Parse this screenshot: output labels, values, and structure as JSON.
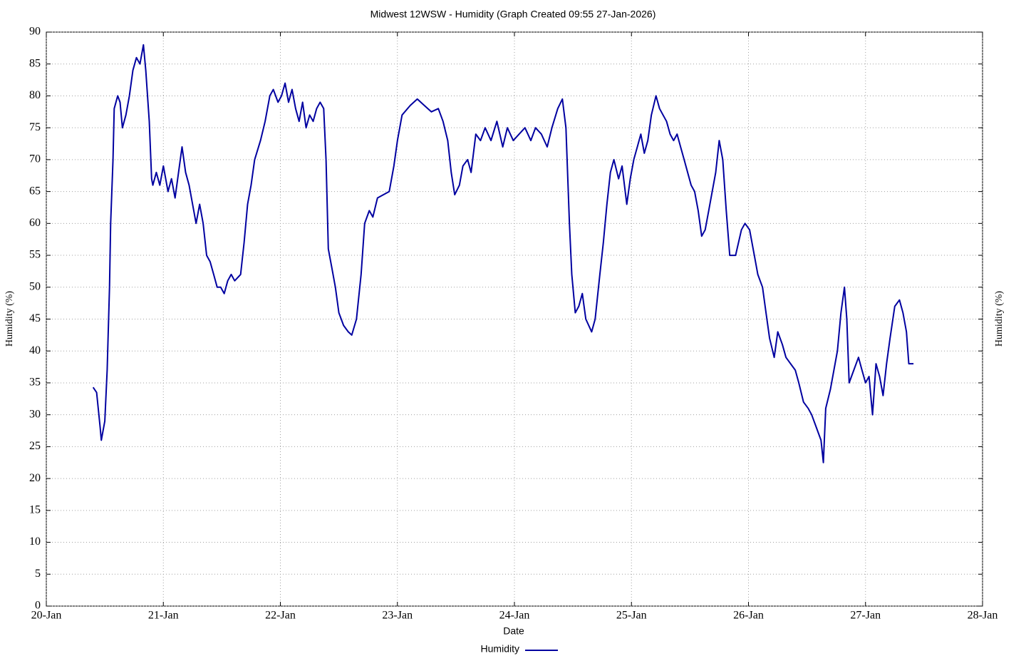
{
  "chart_data": {
    "type": "line",
    "title": "Midwest 12WSW - Humidity (Graph Created 09:55 27-Jan-2026)",
    "xlabel": "Date",
    "ylabel": "Humidity (%)",
    "y2label": "Humidity (%)",
    "xlim": [
      0,
      8
    ],
    "xticks": [
      {
        "value": 0,
        "label": "20-Jan"
      },
      {
        "value": 1,
        "label": "21-Jan"
      },
      {
        "value": 2,
        "label": "22-Jan"
      },
      {
        "value": 3,
        "label": "23-Jan"
      },
      {
        "value": 4,
        "label": "24-Jan"
      },
      {
        "value": 5,
        "label": "25-Jan"
      },
      {
        "value": 6,
        "label": "26-Jan"
      },
      {
        "value": 7,
        "label": "27-Jan"
      },
      {
        "value": 8,
        "label": "28-Jan"
      }
    ],
    "ylim": [
      0,
      90
    ],
    "yticks": [
      0,
      5,
      10,
      15,
      20,
      25,
      30,
      35,
      40,
      45,
      50,
      55,
      60,
      65,
      70,
      75,
      80,
      85,
      90
    ],
    "grid": true,
    "legend": "bottom",
    "x": [
      0.4,
      0.43,
      0.46,
      0.47,
      0.5,
      0.52,
      0.54,
      0.55,
      0.57,
      0.58,
      0.61,
      0.63,
      0.65,
      0.68,
      0.71,
      0.74,
      0.77,
      0.8,
      0.83,
      0.85,
      0.88,
      0.9,
      0.91,
      0.94,
      0.97,
      1.0,
      1.04,
      1.07,
      1.1,
      1.13,
      1.16,
      1.19,
      1.22,
      1.25,
      1.28,
      1.31,
      1.34,
      1.37,
      1.4,
      1.43,
      1.46,
      1.49,
      1.52,
      1.55,
      1.58,
      1.61,
      1.66,
      1.69,
      1.72,
      1.75,
      1.78,
      1.83,
      1.87,
      1.91,
      1.94,
      1.98,
      2.01,
      2.04,
      2.07,
      2.1,
      2.13,
      2.16,
      2.19,
      2.22,
      2.25,
      2.28,
      2.31,
      2.34,
      2.37,
      2.39,
      2.41,
      2.44,
      2.47,
      2.5,
      2.54,
      2.58,
      2.61,
      2.65,
      2.69,
      2.72,
      2.76,
      2.79,
      2.83,
      2.88,
      2.93,
      2.97,
      3.0,
      3.04,
      3.11,
      3.17,
      3.23,
      3.29,
      3.35,
      3.39,
      3.43,
      3.46,
      3.49,
      3.53,
      3.56,
      3.6,
      3.63,
      3.67,
      3.71,
      3.75,
      3.8,
      3.85,
      3.9,
      3.94,
      3.99,
      4.04,
      4.09,
      4.14,
      4.18,
      4.23,
      4.28,
      4.32,
      4.37,
      4.41,
      4.44,
      4.47,
      4.49,
      4.52,
      4.55,
      4.58,
      4.61,
      4.66,
      4.69,
      4.73,
      4.76,
      4.79,
      4.82,
      4.85,
      4.89,
      4.92,
      4.96,
      4.99,
      5.02,
      5.05,
      5.08,
      5.11,
      5.14,
      5.17,
      5.21,
      5.24,
      5.27,
      5.3,
      5.33,
      5.36,
      5.39,
      5.42,
      5.45,
      5.48,
      5.51,
      5.54,
      5.57,
      5.6,
      5.63,
      5.66,
      5.69,
      5.72,
      5.75,
      5.78,
      5.81,
      5.84,
      5.89,
      5.94,
      5.97,
      6.01,
      6.05,
      6.08,
      6.12,
      6.15,
      6.18,
      6.22,
      6.25,
      6.29,
      6.32,
      6.36,
      6.4,
      6.43,
      6.47,
      6.51,
      6.54,
      6.58,
      6.62,
      6.64,
      6.66,
      6.7,
      6.73,
      6.76,
      6.79,
      6.82,
      6.84,
      6.86,
      6.9,
      6.94,
      6.97,
      7.0,
      7.03,
      7.06,
      7.09,
      7.12,
      7.15,
      7.18,
      7.21,
      7.25,
      7.29,
      7.32,
      7.35,
      7.37,
      7.4,
      7.41
    ],
    "series": [
      {
        "name": "Humidity",
        "color": "#0000a0",
        "values": [
          34.3,
          33.5,
          28,
          26,
          29,
          37,
          50,
          60,
          70,
          78,
          80,
          79,
          75,
          77,
          80,
          84,
          86,
          85,
          88,
          84,
          76,
          67,
          66,
          68,
          66,
          69,
          65,
          67,
          64,
          68,
          72,
          68,
          66,
          63,
          60,
          63,
          60,
          55,
          54,
          52,
          50,
          50,
          49,
          51,
          52,
          51,
          52,
          57,
          63,
          66,
          70,
          73,
          76,
          80,
          81,
          79,
          80,
          82,
          79,
          81,
          78,
          76,
          79,
          75,
          77,
          76,
          78,
          79,
          78,
          70,
          56,
          53,
          50,
          46,
          44,
          43,
          42.5,
          45,
          52,
          60,
          62,
          61,
          64,
          64.5,
          65,
          69,
          73,
          77,
          78.5,
          79.5,
          78.5,
          77.5,
          78,
          76,
          73,
          68,
          64.5,
          66,
          69,
          70,
          68,
          74,
          73,
          75,
          73,
          76,
          72,
          75,
          73,
          74,
          75,
          73,
          75,
          74,
          72,
          75,
          78,
          79.5,
          75,
          60,
          52,
          46,
          47,
          49,
          45,
          43,
          45,
          52,
          57,
          63,
          68,
          70,
          67,
          69,
          63,
          67,
          70,
          72,
          74,
          71,
          73,
          77,
          80,
          78,
          77,
          76,
          74,
          73,
          74,
          72,
          70,
          68,
          66,
          65,
          62,
          58,
          59,
          62,
          65,
          68,
          73,
          70,
          62,
          55,
          55,
          59,
          60,
          59,
          55,
          52,
          50,
          46,
          42,
          39,
          43,
          41,
          39,
          38,
          37,
          35,
          32,
          31,
          30,
          28,
          26,
          22.5,
          31,
          34,
          37,
          40,
          46,
          50,
          45,
          35,
          37,
          39,
          37,
          35,
          36,
          30,
          38,
          36,
          33,
          38,
          42,
          47,
          48,
          46,
          43,
          38,
          38,
          38
        ]
      }
    ]
  }
}
